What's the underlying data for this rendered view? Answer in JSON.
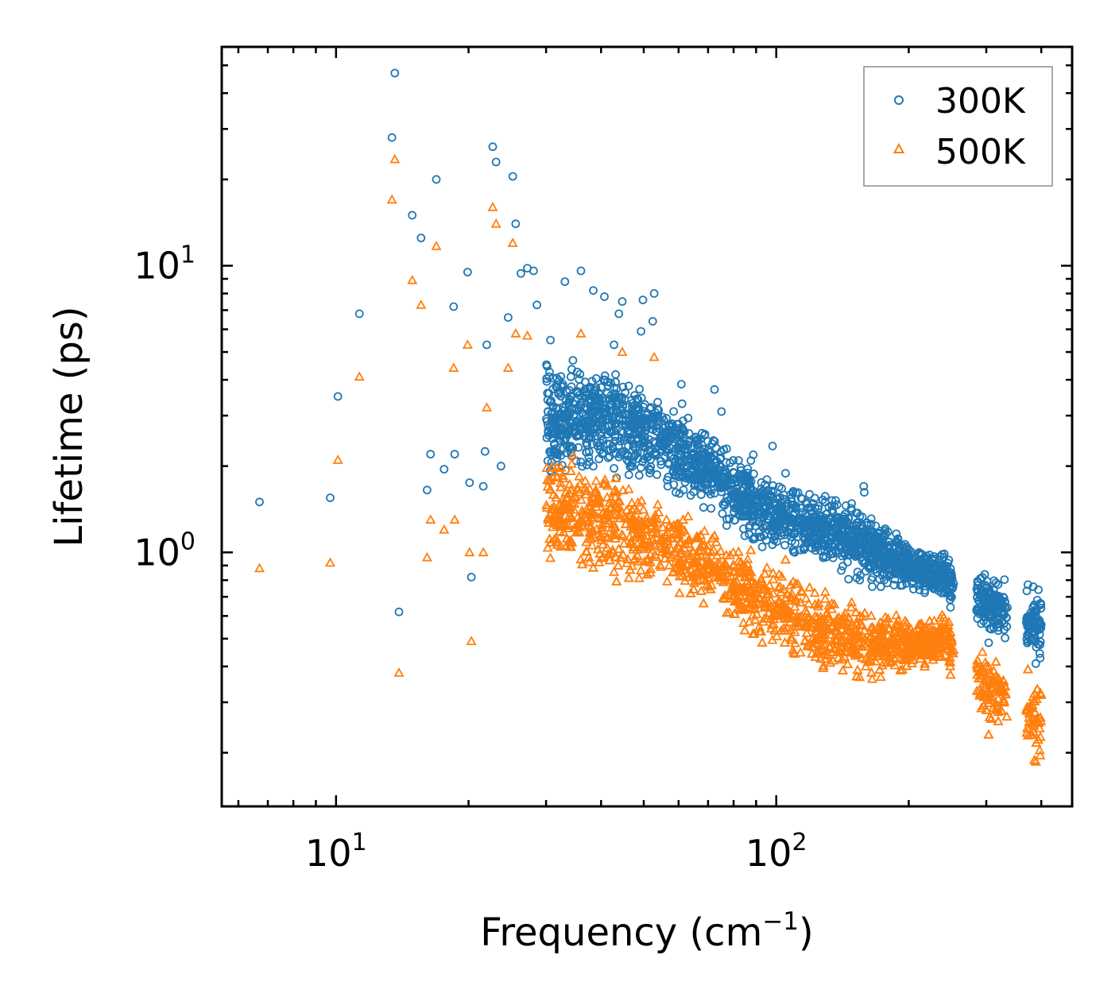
{
  "chart_data": {
    "type": "scatter",
    "title": "",
    "xlabel": "Frequency (cm",
    "xlabel_sup": "−1",
    "xlabel_end": ")",
    "ylabel": "Lifetime (ps)",
    "xscale": "log",
    "yscale": "log",
    "xlim": [
      5.5,
      470
    ],
    "ylim": [
      0.13,
      58
    ],
    "x_ticks": [
      {
        "base": "10",
        "exp": "1",
        "value": 10
      },
      {
        "base": "10",
        "exp": "2",
        "value": 100
      }
    ],
    "y_ticks": [
      {
        "base": "10",
        "exp": "0",
        "value": 1
      },
      {
        "base": "10",
        "exp": "1",
        "value": 10
      }
    ],
    "legend_position": "top-right",
    "series": [
      {
        "name": "300K",
        "marker": "circle",
        "color": "#1f77b4",
        "points": [
          [
            6.7,
            1.5
          ],
          [
            9.7,
            1.55
          ],
          [
            10.1,
            3.5
          ],
          [
            11.3,
            6.8
          ],
          [
            13.4,
            28
          ],
          [
            13.6,
            47
          ],
          [
            13.9,
            0.62
          ],
          [
            14.9,
            15
          ],
          [
            15.6,
            12.5
          ],
          [
            16.1,
            1.65
          ],
          [
            16.4,
            2.2
          ],
          [
            16.9,
            20
          ],
          [
            17.6,
            1.95
          ],
          [
            18.5,
            7.2
          ],
          [
            18.6,
            2.2
          ],
          [
            19.9,
            9.5
          ],
          [
            20.1,
            1.75
          ],
          [
            20.3,
            0.82
          ],
          [
            21.6,
            1.7
          ],
          [
            21.8,
            2.25
          ],
          [
            22.0,
            5.3
          ],
          [
            22.7,
            26
          ],
          [
            23.1,
            23
          ],
          [
            23.7,
            2.0
          ],
          [
            24.6,
            6.6
          ],
          [
            25.2,
            20.5
          ],
          [
            25.6,
            14
          ],
          [
            26.3,
            9.4
          ],
          [
            27.2,
            9.8
          ],
          [
            28.1,
            9.6
          ],
          [
            28.6,
            7.3
          ],
          [
            30.7,
            5.5
          ],
          [
            33.1,
            8.8
          ],
          [
            36.0,
            9.6
          ],
          [
            38.4,
            8.2
          ],
          [
            40.7,
            7.8
          ],
          [
            42.8,
            5.3
          ],
          [
            43.9,
            6.8
          ],
          [
            44.7,
            7.5
          ],
          [
            49.3,
            5.9
          ],
          [
            49.8,
            7.6
          ],
          [
            52.4,
            6.4
          ],
          [
            52.8,
            8.0
          ],
          [
            61.1,
            3.3
          ],
          [
            72.4,
            3.7
          ],
          [
            75.1,
            3.1
          ],
          [
            98.1,
            2.35
          ],
          [
            158.0,
            1.7
          ],
          [
            158.5,
            1.62
          ]
        ],
        "dense": [
          [
            30,
            2.9,
            0.35
          ],
          [
            40,
            3.0,
            0.33
          ],
          [
            55,
            2.5,
            0.3
          ],
          [
            75,
            1.8,
            0.25
          ],
          [
            100,
            1.35,
            0.22
          ],
          [
            130,
            1.2,
            0.2
          ],
          [
            160,
            1.05,
            0.22
          ],
          [
            200,
            0.9,
            0.15
          ],
          [
            240,
            0.82,
            0.14
          ],
          [
            310,
            0.65,
            0.2
          ],
          [
            400,
            0.55,
            0.22
          ]
        ]
      },
      {
        "name": "500K",
        "marker": "triangle",
        "color": "#ff7f0e",
        "points": [
          [
            6.7,
            0.88
          ],
          [
            9.7,
            0.92
          ],
          [
            10.1,
            2.1
          ],
          [
            11.3,
            4.1
          ],
          [
            13.4,
            17
          ],
          [
            13.6,
            23.5
          ],
          [
            13.9,
            0.38
          ],
          [
            14.9,
            8.9
          ],
          [
            15.6,
            7.3
          ],
          [
            16.1,
            0.96
          ],
          [
            16.4,
            1.3
          ],
          [
            16.9,
            11.7
          ],
          [
            17.6,
            1.2
          ],
          [
            18.5,
            4.4
          ],
          [
            18.6,
            1.3
          ],
          [
            19.9,
            5.3
          ],
          [
            20.1,
            1.0
          ],
          [
            20.3,
            0.49
          ],
          [
            21.6,
            1.0
          ],
          [
            22.0,
            3.2
          ],
          [
            22.7,
            16
          ],
          [
            23.1,
            14
          ],
          [
            24.6,
            4.4
          ],
          [
            25.2,
            12
          ],
          [
            25.6,
            5.8
          ],
          [
            27.2,
            5.7
          ],
          [
            36.0,
            5.8
          ],
          [
            44.7,
            5.0
          ],
          [
            52.8,
            4.8
          ]
        ],
        "dense": [
          [
            30,
            1.45,
            0.35
          ],
          [
            40,
            1.3,
            0.33
          ],
          [
            55,
            1.1,
            0.3
          ],
          [
            75,
            0.85,
            0.25
          ],
          [
            100,
            0.65,
            0.25
          ],
          [
            130,
            0.52,
            0.25
          ],
          [
            160,
            0.48,
            0.2
          ],
          [
            200,
            0.48,
            0.18
          ],
          [
            240,
            0.5,
            0.15
          ],
          [
            310,
            0.33,
            0.25
          ],
          [
            400,
            0.26,
            0.25
          ]
        ]
      }
    ]
  }
}
